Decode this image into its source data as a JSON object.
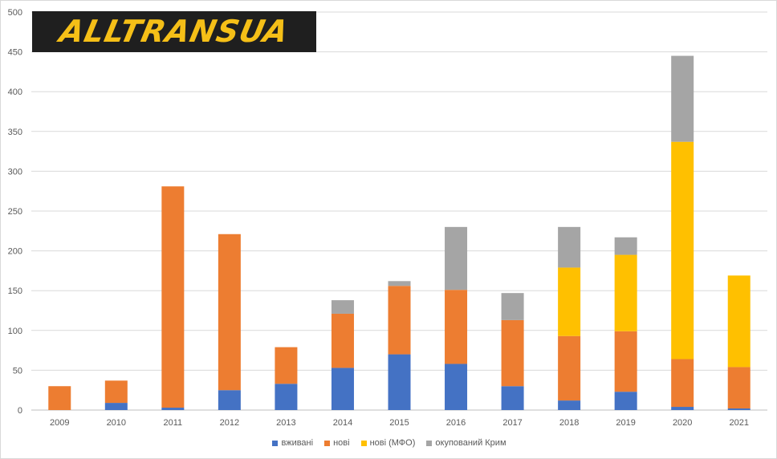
{
  "logo": {
    "text": "ALLTRANSUA",
    "color": "#f5bf17",
    "background": "#1f1f1f"
  },
  "chart_data": {
    "type": "bar",
    "stacked": true,
    "title": "",
    "xlabel": "",
    "ylabel": "",
    "ylim": [
      0,
      500
    ],
    "yticks": [
      0,
      50,
      100,
      150,
      200,
      250,
      300,
      350,
      400,
      450,
      500
    ],
    "grid": true,
    "legend_position": "bottom",
    "categories": [
      "2009",
      "2010",
      "2011",
      "2012",
      "2013",
      "2014",
      "2015",
      "2016",
      "2017",
      "2018",
      "2019",
      "2020",
      "2021"
    ],
    "series": [
      {
        "name": "вживані",
        "color": "#4472c4",
        "values": [
          0,
          9,
          3,
          25,
          33,
          53,
          70,
          58,
          30,
          12,
          23,
          4,
          2
        ]
      },
      {
        "name": "нові",
        "color": "#ed7d31",
        "values": [
          30,
          28,
          278,
          196,
          46,
          68,
          86,
          93,
          83,
          81,
          76,
          60,
          52
        ]
      },
      {
        "name": "нові (МФО)",
        "color": "#ffc000",
        "values": [
          0,
          0,
          0,
          0,
          0,
          0,
          0,
          0,
          0,
          86,
          96,
          273,
          115
        ]
      },
      {
        "name": "окупований Крим",
        "color": "#a5a5a5",
        "values": [
          0,
          0,
          0,
          0,
          0,
          17,
          6,
          79,
          34,
          51,
          22,
          108,
          0
        ]
      }
    ]
  }
}
